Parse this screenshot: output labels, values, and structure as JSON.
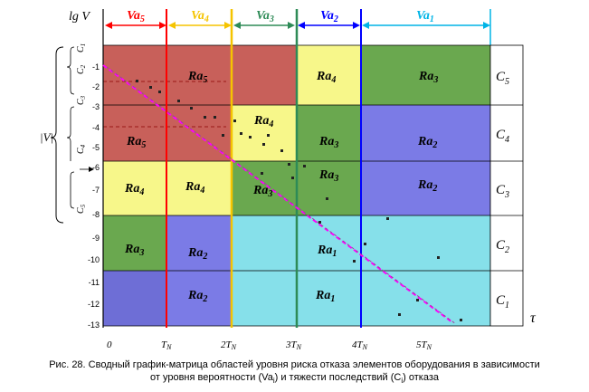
{
  "y_axis_label": "lg V",
  "x_axis_label": "τ",
  "zone_headers": [
    {
      "base": "Va",
      "sub": "5",
      "color": "#ff0000"
    },
    {
      "base": "Va",
      "sub": "4",
      "color": "#f5c400"
    },
    {
      "base": "Va",
      "sub": "3",
      "color": "#2e8b57"
    },
    {
      "base": "Va",
      "sub": "2",
      "color": "#0000ff"
    },
    {
      "base": "Va",
      "sub": "1",
      "color": "#00b4e6"
    }
  ],
  "severity_labels": [
    {
      "base": "C",
      "sub": "5"
    },
    {
      "base": "C",
      "sub": "4"
    },
    {
      "base": "C",
      "sub": "3"
    },
    {
      "base": "C",
      "sub": "2"
    },
    {
      "base": "C",
      "sub": "1"
    }
  ],
  "y_ticks": [
    "-1",
    "-2",
    "-3",
    "-4",
    "-5",
    "-6",
    "-7",
    "-8",
    "-9",
    "-10",
    "-11",
    "-12",
    "-13"
  ],
  "x_ticks": [
    {
      "main": "0",
      "sub": ""
    },
    {
      "main": "T",
      "sub": "N"
    },
    {
      "main": "2T",
      "sub": "N"
    },
    {
      "main": "3T",
      "sub": "N"
    },
    {
      "main": "4T",
      "sub": "N"
    },
    {
      "main": "5T",
      "sub": "N"
    }
  ],
  "left_brace_label": "|V|",
  "left_brace_sublabels": [
    {
      "base": "C",
      "sub": "1"
    },
    {
      "base": "C",
      "sub": "2"
    },
    {
      "base": "C",
      "sub": "3"
    },
    {
      "base": "C",
      "sub": "4"
    },
    {
      "base": "C",
      "sub": "5"
    }
  ],
  "colors": {
    "Ra5": "#c8605a",
    "Ra4": "#f7f78a",
    "Ra3": "#6aa84f",
    "Ra2": "#7b7be6",
    "Ra1": "#86e0ea",
    "Ra2_alt": "#6e6ed6"
  },
  "cells": [
    {
      "label_base": "Ra",
      "label_sub": "5",
      "fill": "Ra5"
    },
    {
      "label_base": "Ra",
      "label_sub": "4",
      "fill": "Ra4"
    },
    {
      "label_base": "Ra",
      "label_sub": "3",
      "fill": "Ra3"
    },
    {
      "label_base": "Ra",
      "label_sub": "4",
      "fill": "Ra4"
    },
    {
      "label_base": "Ra",
      "label_sub": "3",
      "fill": "Ra3"
    },
    {
      "label_base": "Ra",
      "label_sub": "2",
      "fill": "Ra2"
    },
    {
      "label_base": "Ra",
      "label_sub": "1",
      "fill": "Ra1"
    }
  ],
  "caption_line1": "Рис. 28. Сводный график-матрица областей уровня риска отказа элементов оборудования в зависимости",
  "caption_line2": "от уровня вероятности (Va",
  "caption_line2_sub1": "i",
  "caption_line2_mid": ") и тяжести последствий (C",
  "caption_line2_sub2": "i",
  "caption_line2_end": ") отказа"
}
